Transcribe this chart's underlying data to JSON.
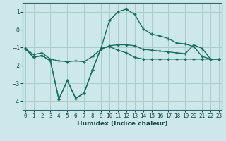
{
  "xlabel": "Humidex (Indice chaleur)",
  "background_color": "#cce8ea",
  "grid_color": "#aacccc",
  "line_color": "#1a6e60",
  "x": [
    0,
    1,
    2,
    3,
    4,
    5,
    6,
    7,
    8,
    9,
    10,
    11,
    12,
    13,
    14,
    15,
    16,
    17,
    18,
    19,
    20,
    21,
    22,
    23
  ],
  "line1": [
    -1.05,
    -1.55,
    -1.45,
    -1.75,
    -3.9,
    -2.85,
    -3.85,
    -3.55,
    -2.25,
    -1.05,
    -0.95,
    -1.15,
    -1.3,
    -1.55,
    -1.65,
    -1.65,
    -1.65,
    -1.65,
    -1.65,
    -1.65,
    -1.65,
    -1.65,
    -1.65,
    -1.65
  ],
  "line2": [
    -1.05,
    -1.55,
    -1.45,
    -1.75,
    -3.9,
    -2.85,
    -3.85,
    -3.55,
    -2.25,
    -1.05,
    0.5,
    1.0,
    1.15,
    0.85,
    0.05,
    -0.25,
    -0.35,
    -0.5,
    -0.75,
    -0.8,
    -0.95,
    -1.5,
    -1.65,
    -1.65
  ],
  "line3": [
    -1.05,
    -1.4,
    -1.3,
    -1.65,
    -1.75,
    -1.8,
    -1.75,
    -1.8,
    -1.5,
    -1.1,
    -0.9,
    -0.85,
    -0.85,
    -0.9,
    -1.1,
    -1.15,
    -1.2,
    -1.25,
    -1.3,
    -1.35,
    -0.85,
    -1.05,
    -1.65,
    -1.65
  ],
  "ylim": [
    -4.5,
    1.5
  ],
  "xlim": [
    -0.3,
    23.3
  ],
  "yticks": [
    -4,
    -3,
    -2,
    -1,
    0,
    1
  ],
  "xticks": [
    0,
    1,
    2,
    3,
    4,
    5,
    6,
    7,
    8,
    9,
    10,
    11,
    12,
    13,
    14,
    15,
    16,
    17,
    18,
    19,
    20,
    21,
    22,
    23
  ]
}
